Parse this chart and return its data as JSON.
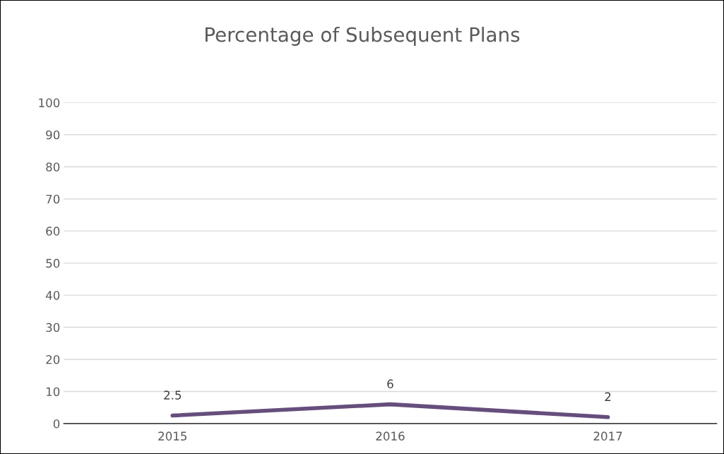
{
  "chart_data": {
    "type": "line",
    "title": "Percentage of Subsequent Plans",
    "categories": [
      "2015",
      "2016",
      "2017"
    ],
    "series": [
      {
        "color": "#664e7c",
        "values": [
          2.5,
          6,
          2
        ]
      }
    ],
    "ylim": [
      0,
      100
    ],
    "yticks": [
      0,
      10,
      20,
      30,
      40,
      50,
      60,
      70,
      80,
      90,
      100
    ],
    "grid": "y",
    "data_labels": true,
    "marker": "none",
    "line_style": "solid"
  }
}
